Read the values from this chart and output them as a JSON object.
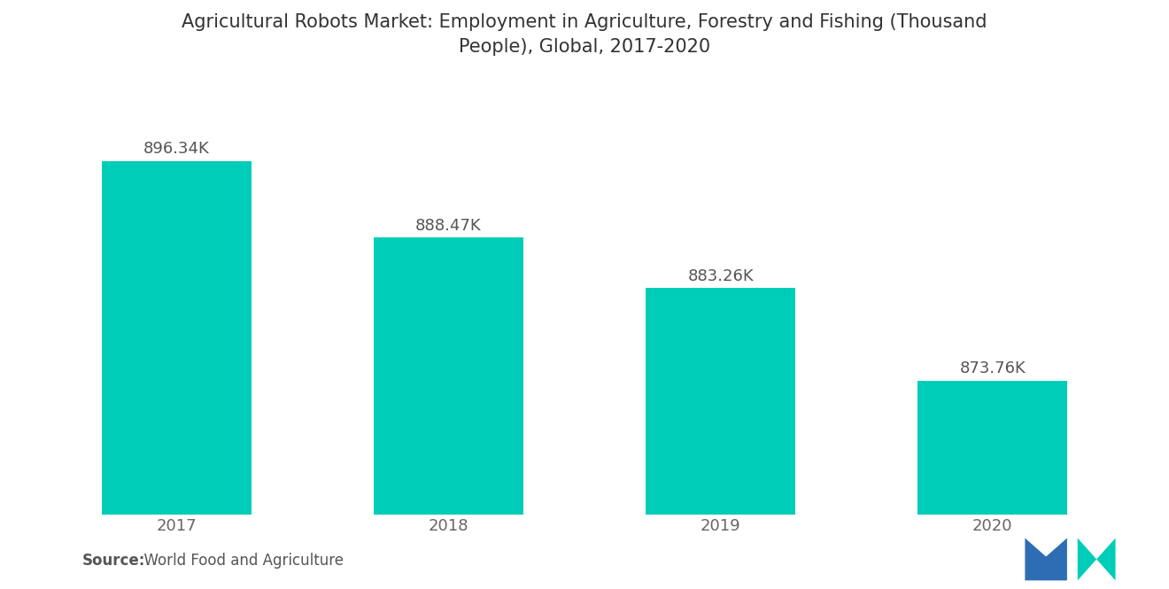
{
  "title": "Agricultural Robots Market: Employment in Agriculture, Forestry and Fishing (Thousand\nPeople), Global, 2017-2020",
  "categories": [
    "2017",
    "2018",
    "2019",
    "2020"
  ],
  "values": [
    896.34,
    888.47,
    883.26,
    873.76
  ],
  "labels": [
    "896.34K",
    "888.47K",
    "883.26K",
    "873.76K"
  ],
  "bar_color": "#00CDB7",
  "background_color": "#ffffff",
  "source_bold": "Source:",
  "source_rest": "  World Food and Agriculture",
  "title_fontsize": 15,
  "label_fontsize": 13,
  "tick_fontsize": 13,
  "source_fontsize": 12,
  "ylim_min": 860,
  "ylim_max": 905,
  "bar_width": 0.55,
  "logo_blue": "#2E6DB4",
  "logo_teal": "#00CDB7"
}
